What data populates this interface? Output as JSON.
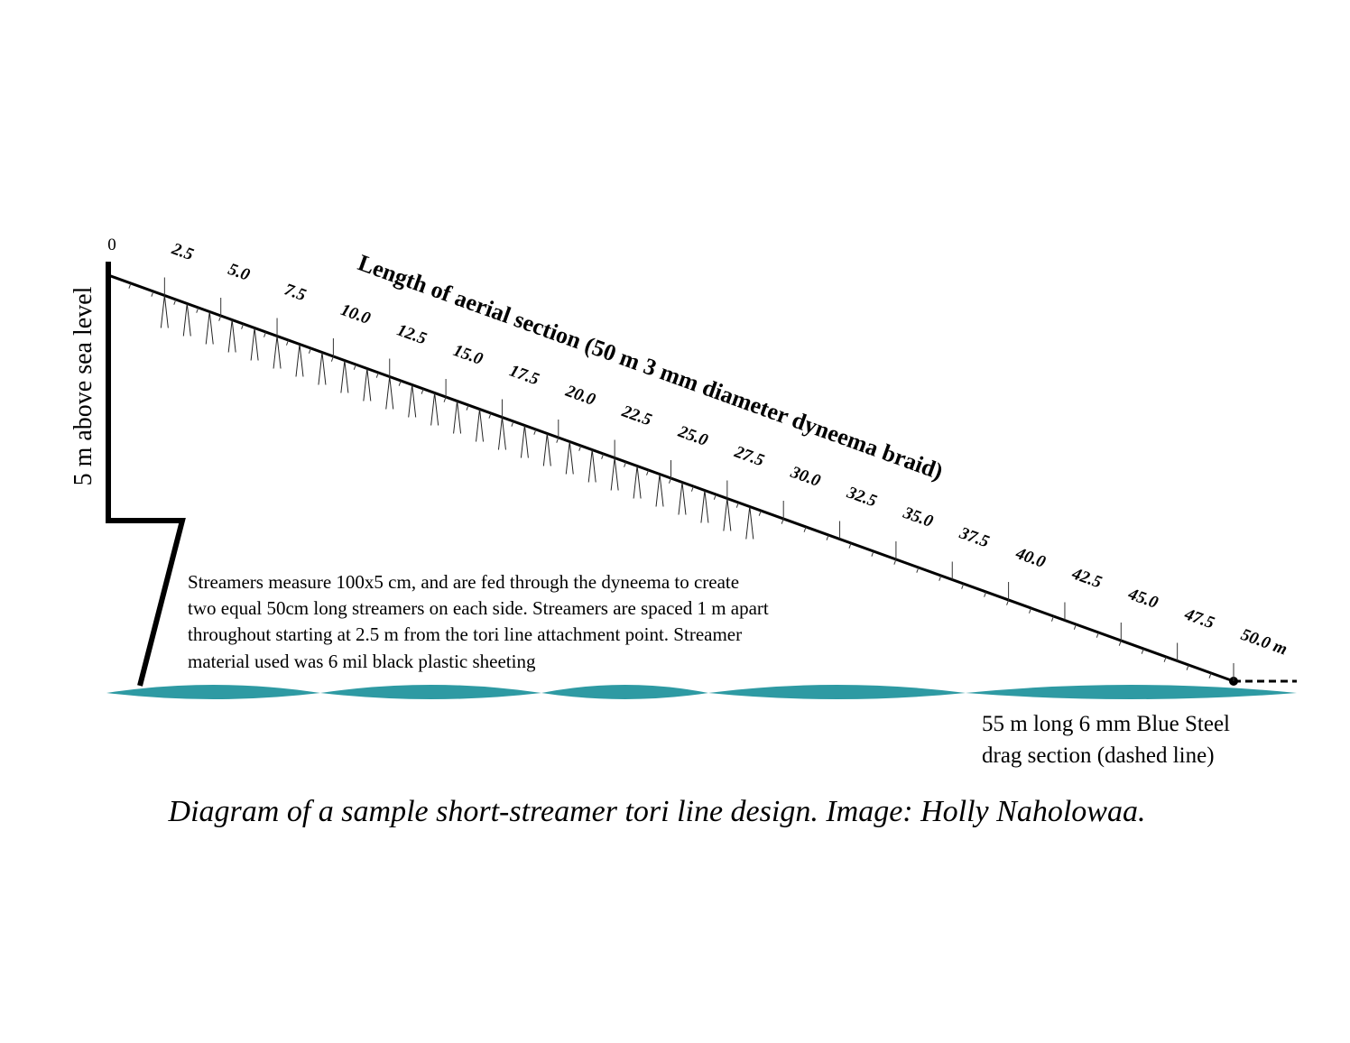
{
  "vertical_label": "5 m above sea level",
  "line_title": "Length of aerial section (50 m 3 mm diameter dyneema braid)",
  "distance_labels": [
    "0",
    "2.5",
    "5.0",
    "7.5",
    "10.0",
    "12.5",
    "15.0",
    "17.5",
    "20.0",
    "22.5",
    "25.0",
    "27.5",
    "30.0",
    "32.5",
    "35.0",
    "37.5",
    "40.0",
    "42.5",
    "45.0",
    "47.5",
    "50.0 m"
  ],
  "note": [
    "Streamers measure 100x5 cm, and are fed through the dyneema to create",
    "two equal 50cm long streamers on each side. Streamers are spaced 1 m apart",
    "throughout starting at 2.5 m from the tori line attachment point.  Streamer",
    "material used was 6 mil black plastic sheeting"
  ],
  "drag_label": [
    "55 m long 6 mm Blue Steel",
    "drag section (dashed line)"
  ],
  "caption": "Diagram of a sample short-streamer tori line design. Image: Holly Naholowaa."
}
